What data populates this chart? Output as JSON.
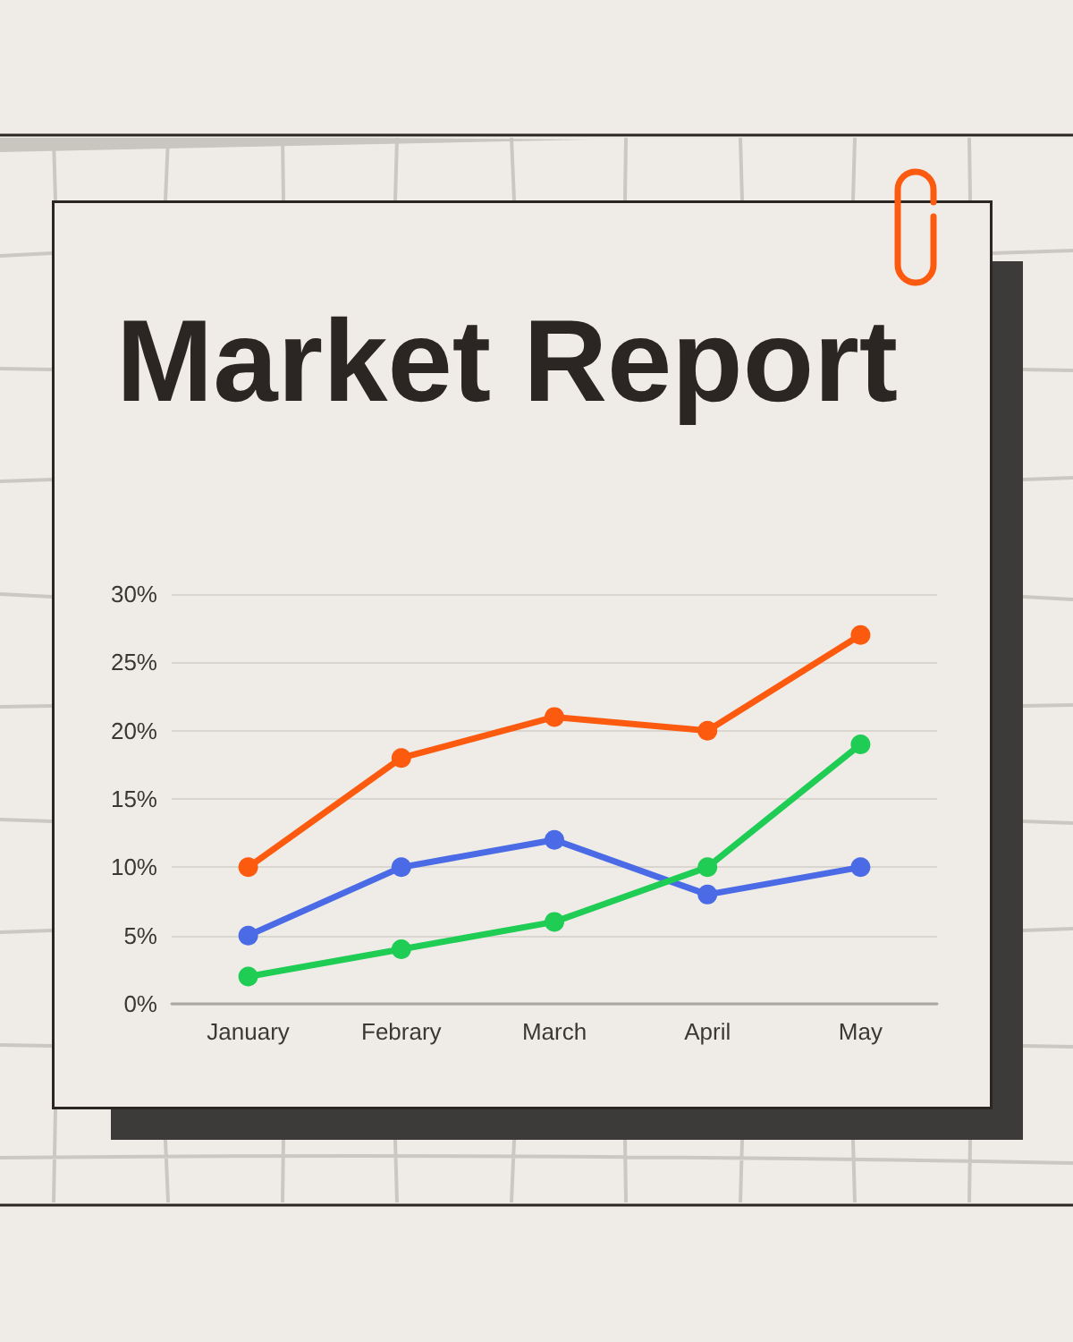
{
  "chart_data": {
    "type": "line",
    "title": "Market Report",
    "categories": [
      "January",
      "Febrary",
      "March",
      "April",
      "May"
    ],
    "series": [
      {
        "color": "#fc5a0f",
        "values": [
          10,
          18,
          21,
          20,
          27
        ]
      },
      {
        "color": "#4b6be6",
        "values": [
          5,
          10,
          12,
          8,
          10
        ]
      },
      {
        "color": "#1fcc54",
        "values": [
          2,
          4,
          6,
          10,
          19
        ]
      }
    ],
    "ylim": [
      0,
      30
    ],
    "yticks": [
      {
        "value": 0,
        "label": "0%"
      },
      {
        "value": 5,
        "label": "5%"
      },
      {
        "value": 10,
        "label": "10%"
      },
      {
        "value": 15,
        "label": "15%"
      },
      {
        "value": 20,
        "label": "20%"
      },
      {
        "value": 25,
        "label": "25%"
      },
      {
        "value": 30,
        "label": "30%"
      }
    ],
    "grid": "y",
    "marker": "circle",
    "line_style": "solid"
  }
}
